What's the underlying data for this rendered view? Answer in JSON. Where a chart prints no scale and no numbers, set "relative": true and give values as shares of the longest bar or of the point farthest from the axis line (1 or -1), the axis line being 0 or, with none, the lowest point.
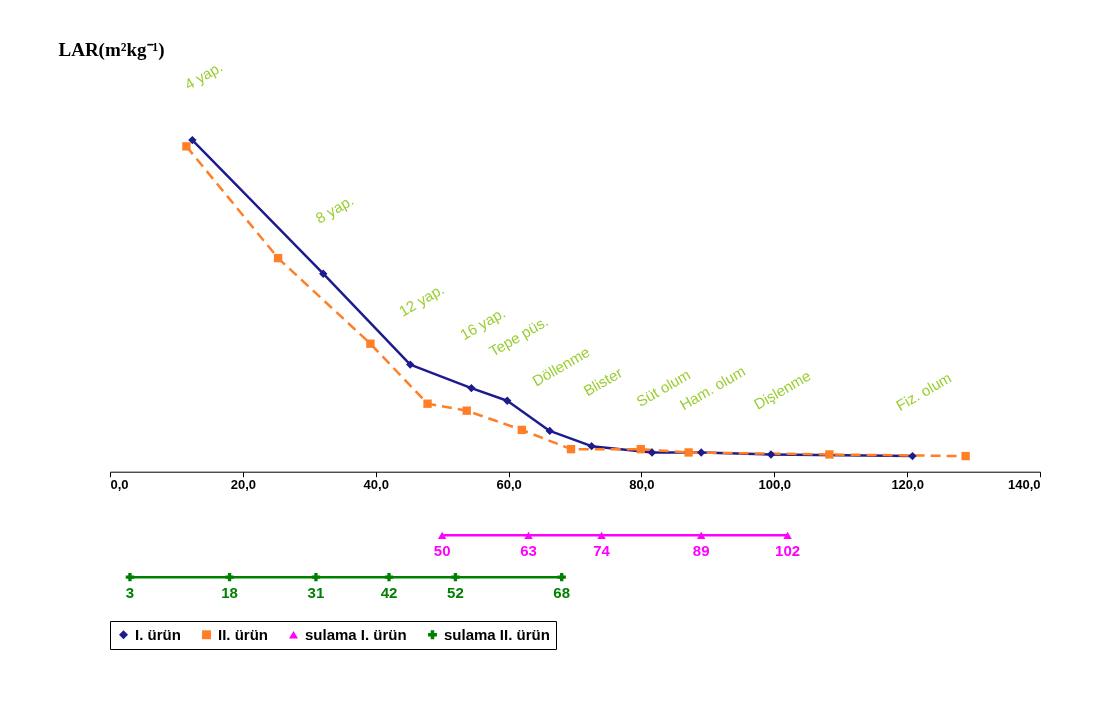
{
  "chart_data": {
    "type": "line",
    "ylabel": "LAR(m²kg⁻¹)",
    "relative": true,
    "xlim": [
      0,
      140
    ],
    "xticks": [
      {
        "value": 0,
        "label": "0,0"
      },
      {
        "value": 20,
        "label": "20,0"
      },
      {
        "value": 40,
        "label": "40,0"
      },
      {
        "value": 60,
        "label": "60,0"
      },
      {
        "value": 80,
        "label": "80,0"
      },
      {
        "value": 100,
        "label": "100,0"
      },
      {
        "value": 120,
        "label": "120,0"
      },
      {
        "value": 140,
        "label": "140,0"
      }
    ],
    "legend": "bottom",
    "series": [
      {
        "name": "I. ürün",
        "color": "#1c1c8c",
        "marker": "diamond",
        "x": [
          12.4,
          32.1,
          45.2,
          54.4,
          59.8,
          66.2,
          72.5,
          81.6,
          89.0,
          99.5,
          120.8
        ],
        "values": [
          1,
          0.597,
          0.323,
          0.252,
          0.214,
          0.123,
          0.077,
          0.058,
          0.058,
          0.052,
          0.047
        ]
      },
      {
        "name": "II. ürün",
        "color": "#ff7f27",
        "marker": "square",
        "line_style": "dashed",
        "x": [
          11.5,
          25.3,
          39.2,
          47.8,
          53.7,
          62.0,
          69.4,
          79.9,
          87.1,
          108.3,
          128.8
        ],
        "values": [
          0.981,
          0.644,
          0.386,
          0.205,
          0.184,
          0.126,
          0.068,
          0.068,
          0.058,
          0.052,
          0.047
        ]
      },
      {
        "name": "sulama I. ürün",
        "color": "#ff00ff",
        "marker": "triangle",
        "x": [
          50,
          63,
          74,
          89,
          102
        ],
        "values": [
          -0.192,
          -0.192,
          -0.192,
          -0.192,
          -0.192
        ]
      },
      {
        "name": "sulama II. ürün",
        "color": "#008000",
        "marker": "cross",
        "x": [
          3,
          18,
          31,
          42,
          52,
          68
        ],
        "values": [
          -0.318,
          -0.318,
          -0.318,
          -0.318,
          -0.318,
          -0.318
        ]
      }
    ],
    "annotations": [
      "4 yap.",
      "8 yap.",
      "12 yap.",
      "16 yap.",
      "Tepe püs.",
      "Döllenme",
      "Blister",
      "Süt olum",
      "Ham. olum",
      "Dişlenme",
      "Fiz. olum",
      {
        "text": "50",
        "x": 50,
        "y": -0.192
      },
      {
        "text": "63",
        "x": 63,
        "y": -0.192
      },
      {
        "text": "74",
        "x": 74,
        "y": -0.192
      },
      {
        "text": "89",
        "x": 89,
        "y": -0.192
      },
      {
        "text": "102",
        "x": 102,
        "y": -0.192
      },
      {
        "text": "3",
        "x": 3,
        "y": -0.318
      },
      {
        "text": "18",
        "x": 18,
        "y": -0.318
      },
      {
        "text": "31",
        "x": 31,
        "y": -0.318
      },
      {
        "text": "42",
        "x": 42,
        "y": -0.318
      },
      {
        "text": "52",
        "x": 52,
        "y": -0.318
      },
      {
        "text": "68",
        "x": 68,
        "y": -0.318
      }
    ]
  }
}
